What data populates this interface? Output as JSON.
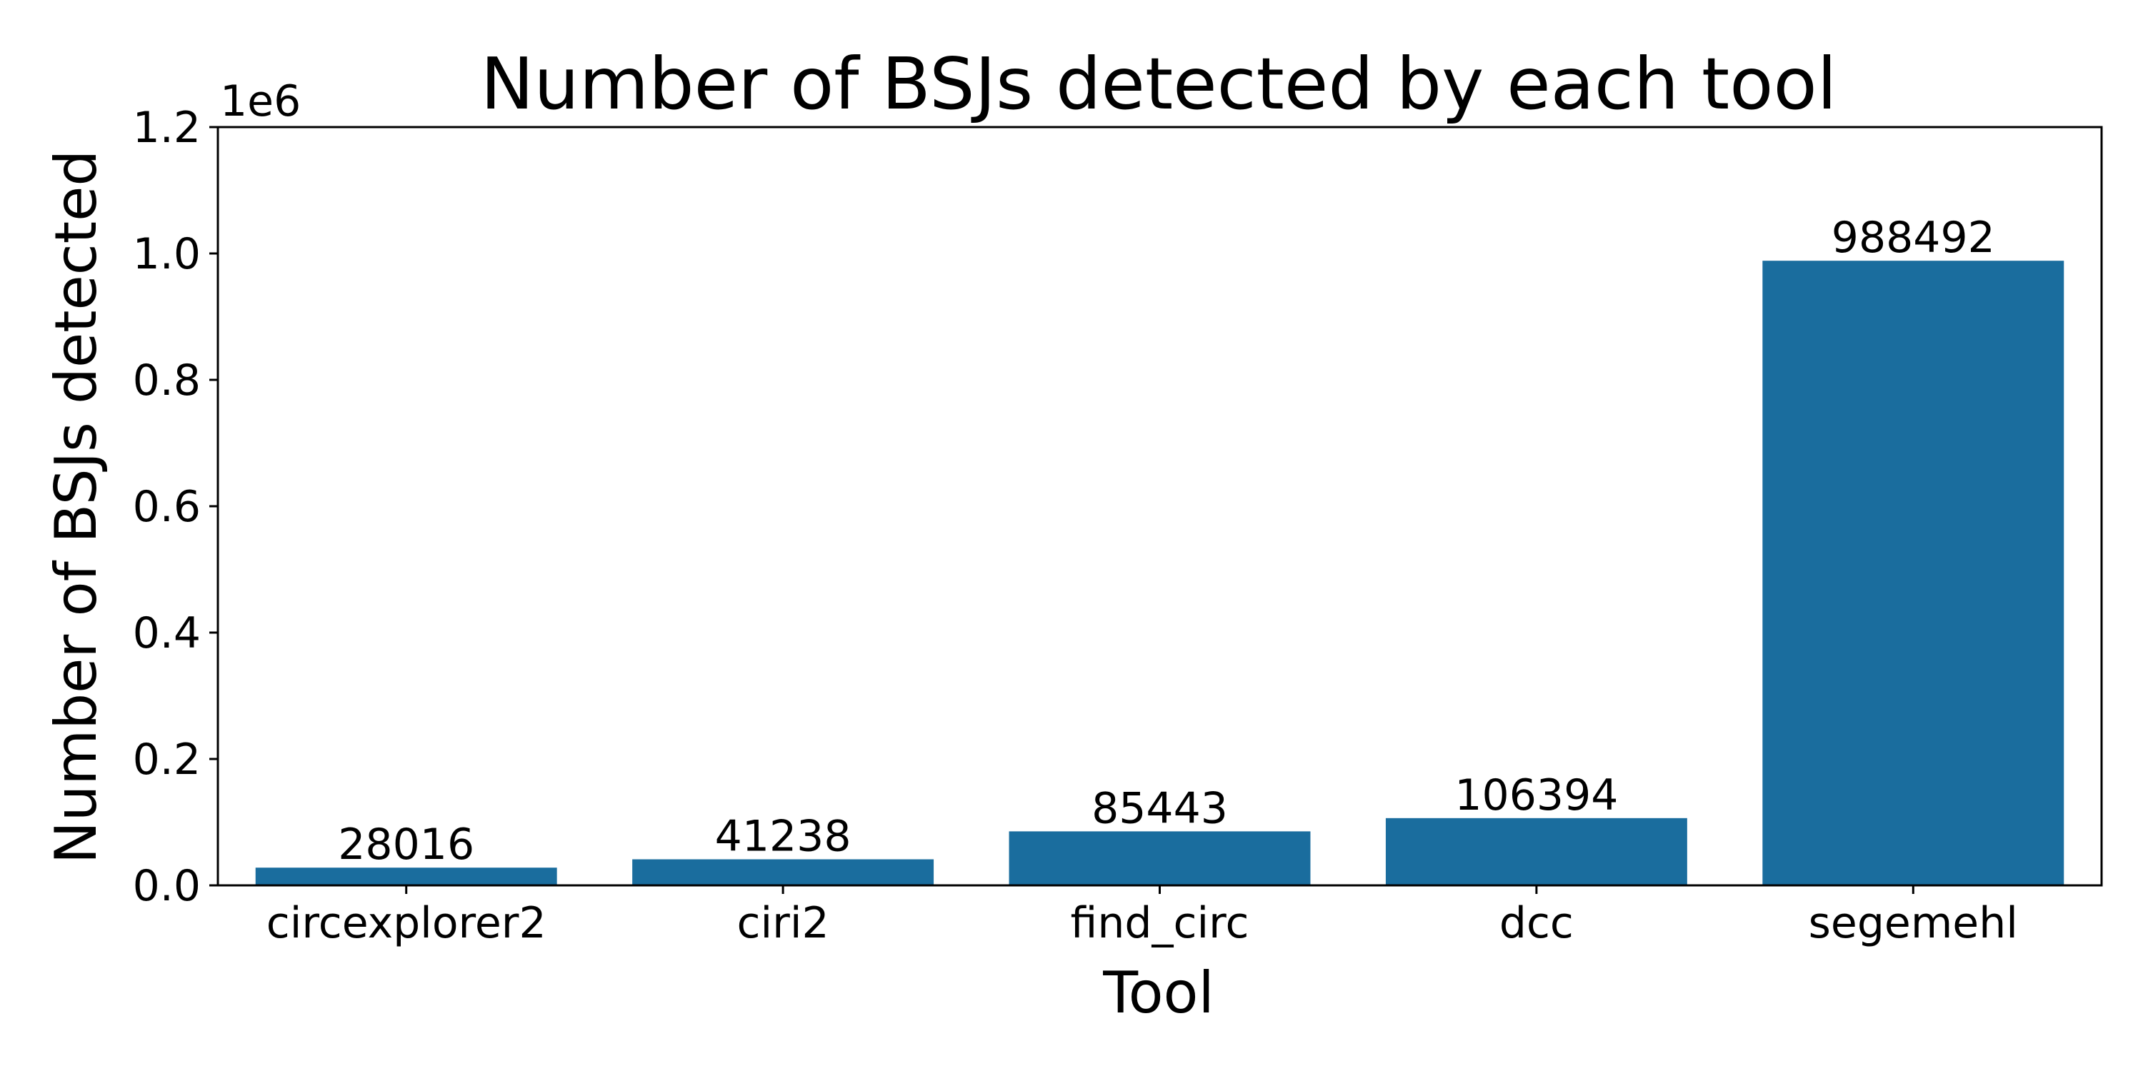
{
  "chart_data": {
    "type": "bar",
    "title": "Number of BSJs detected by each tool",
    "xlabel": "Tool",
    "ylabel": "Number of BSJs detected",
    "categories": [
      "circexplorer2",
      "ciri2",
      "find_circ",
      "dcc",
      "segemehl"
    ],
    "values": [
      28016,
      41238,
      85443,
      106394,
      988492
    ],
    "data_labels": [
      "28016",
      "41238",
      "85443",
      "106394",
      "988492"
    ],
    "ylim": [
      0,
      1200000
    ],
    "yticks": [
      0,
      200000,
      400000,
      600000,
      800000,
      1000000,
      1200000
    ],
    "ytick_labels": [
      "0.0",
      "0.2",
      "0.4",
      "0.6",
      "0.8",
      "1.0",
      "1.2"
    ],
    "y_offset_label": "1e6",
    "bar_color": "#1a6d9e",
    "grid": false,
    "legend": "none"
  }
}
